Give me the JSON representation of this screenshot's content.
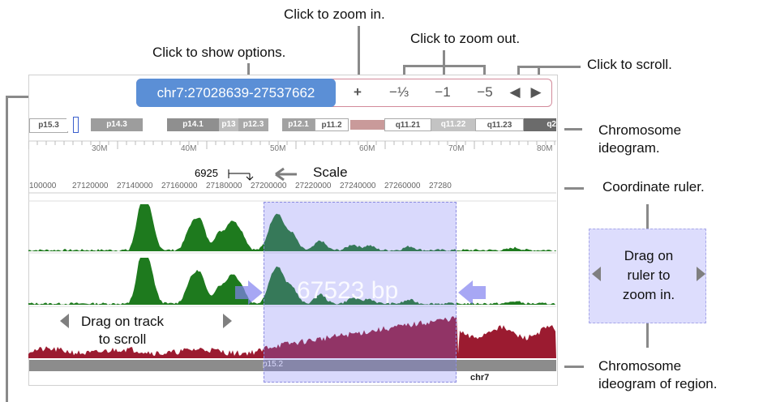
{
  "callouts": {
    "zoom_in": "Click to zoom in.",
    "zoom_out": "Click to zoom out.",
    "show_options": "Click to show options.",
    "scroll": "Click to scroll.",
    "chromosome_ideogram": "Chromosome\nideogram.",
    "coordinate_ruler": "Coordinate ruler.",
    "drag_ruler": "Drag on\nruler to\nzoom in.",
    "drag_track": "Drag on track\nto scroll",
    "region_ideogram": "Chromosome\nideogram of region."
  },
  "nav": {
    "locus": "chr7:27028639-27537662",
    "zoom_in_label": "+",
    "zoom_out_third": "−⅓",
    "zoom_out_1": "−1",
    "zoom_out_5": "−5",
    "scroll_left": "◀",
    "scroll_right": "▶"
  },
  "ideogram": {
    "bands": [
      "p15.3",
      "p14.3",
      "p14.1",
      "p13",
      "p12.3",
      "p12.1",
      "p11.2",
      "q11.21",
      "q11.22",
      "q11.23",
      "q2"
    ]
  },
  "ideogram_ruler": [
    "30M",
    "40M",
    "50M",
    "60M",
    "70M",
    "80M"
  ],
  "scale": {
    "value": "6925",
    "label": "Scale"
  },
  "coordinate_ruler": [
    "100000",
    "27120000",
    "27140000",
    "27160000",
    "27180000",
    "27200000",
    "27220000",
    "27240000",
    "27260000",
    "27280"
  ],
  "selection": {
    "size_label": "67523 bp"
  },
  "region_ideogram": {
    "band": "p15.2",
    "chrom": "chr7"
  },
  "colors": {
    "locus_bg": "#5b8fd6",
    "track_green": "#1e7a1e",
    "track_red": "#9b1b30",
    "selection": "#7878f5"
  }
}
